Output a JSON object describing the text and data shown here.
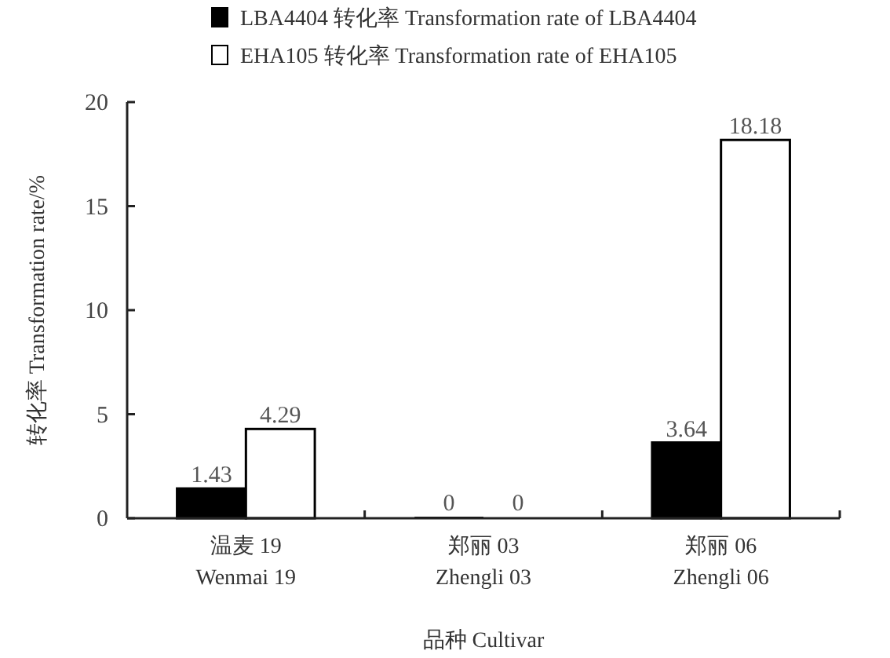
{
  "chart_data": {
    "type": "bar",
    "xlabel": "品种 Cultivar",
    "ylabel": "转化率 Transformation rate/%",
    "categories": [
      "温麦 19\nWenmai 19",
      "郑丽 03\nZhengli 03",
      "郑丽 06\nZhengli 06"
    ],
    "series": [
      {
        "name": "LBA4404 转化率 Transformation rate of LBA4404",
        "color": "#000000",
        "values": [
          1.43,
          0,
          3.64
        ]
      },
      {
        "name": "EHA105 转化率 Transformation rate of EHA105",
        "color": "#ffffff",
        "values": [
          4.29,
          0,
          18.18
        ]
      }
    ],
    "ylim": [
      0,
      20
    ],
    "yticks": [
      0,
      5,
      10,
      15,
      20
    ],
    "data_labels": true,
    "legend": "top",
    "grid": false
  }
}
